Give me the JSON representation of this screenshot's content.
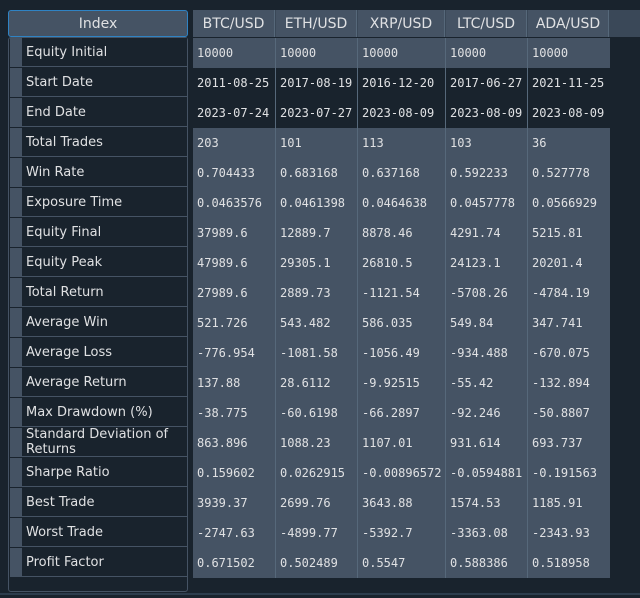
{
  "table": {
    "index_label": "Index",
    "columns": [
      "BTC/USD",
      "ETH/USD",
      "XRP/USD",
      "LTC/USD",
      "ADA/USD"
    ],
    "rows": [
      {
        "label": "Equity Initial",
        "values": [
          "10000",
          "10000",
          "10000",
          "10000",
          "10000"
        ]
      },
      {
        "label": "Start Date",
        "values": [
          "2011-08-25",
          "2017-08-19",
          "2016-12-20",
          "2017-06-27",
          "2021-11-25"
        ]
      },
      {
        "label": "End Date",
        "values": [
          "2023-07-24",
          "2023-07-27",
          "2023-08-09",
          "2023-08-09",
          "2023-08-09"
        ]
      },
      {
        "label": "Total Trades",
        "values": [
          "203",
          "101",
          "113",
          "103",
          "36"
        ]
      },
      {
        "label": "Win Rate",
        "values": [
          "0.704433",
          "0.683168",
          "0.637168",
          "0.592233",
          "0.527778"
        ]
      },
      {
        "label": "Exposure Time",
        "values": [
          "0.0463576",
          "0.0461398",
          "0.0464638",
          "0.0457778",
          "0.0566929"
        ]
      },
      {
        "label": "Equity Final",
        "values": [
          "37989.6",
          "12889.7",
          "8878.46",
          "4291.74",
          "5215.81"
        ]
      },
      {
        "label": "Equity Peak",
        "values": [
          "47989.6",
          "29305.1",
          "26810.5",
          "24123.1",
          "20201.4"
        ]
      },
      {
        "label": "Total Return",
        "values": [
          "27989.6",
          "2889.73",
          "-1121.54",
          "-5708.26",
          "-4784.19"
        ]
      },
      {
        "label": "Average Win",
        "values": [
          "521.726",
          "543.482",
          "586.035",
          "549.84",
          "347.741"
        ]
      },
      {
        "label": "Average Loss",
        "values": [
          "-776.954",
          "-1081.58",
          "-1056.49",
          "-934.488",
          "-670.075"
        ]
      },
      {
        "label": "Average Return",
        "values": [
          "137.88",
          "28.6112",
          "-9.92515",
          "-55.42",
          "-132.894"
        ]
      },
      {
        "label": "Max Drawdown (%)",
        "values": [
          "-38.775",
          "-60.6198",
          "-66.2897",
          "-92.246",
          "-50.8807"
        ]
      },
      {
        "label": "Standard Deviation of Returns",
        "values": [
          "863.896",
          "1088.23",
          "1107.01",
          "931.614",
          "693.737"
        ]
      },
      {
        "label": "Sharpe Ratio",
        "values": [
          "0.159602",
          "0.0262915",
          "-0.00896572",
          "-0.0594881",
          "-0.191563"
        ]
      },
      {
        "label": "Best Trade",
        "values": [
          "3939.37",
          "2699.76",
          "3643.88",
          "1574.53",
          "1185.91"
        ]
      },
      {
        "label": "Worst Trade",
        "values": [
          "-2747.63",
          "-4899.77",
          "-5392.7",
          "-3363.08",
          "-2343.93"
        ]
      },
      {
        "label": "Profit Factor",
        "values": [
          "0.671502",
          "0.502489",
          "0.5547",
          "0.588386",
          "0.518958"
        ]
      }
    ]
  },
  "highlighted_rows": [
    1,
    2
  ]
}
